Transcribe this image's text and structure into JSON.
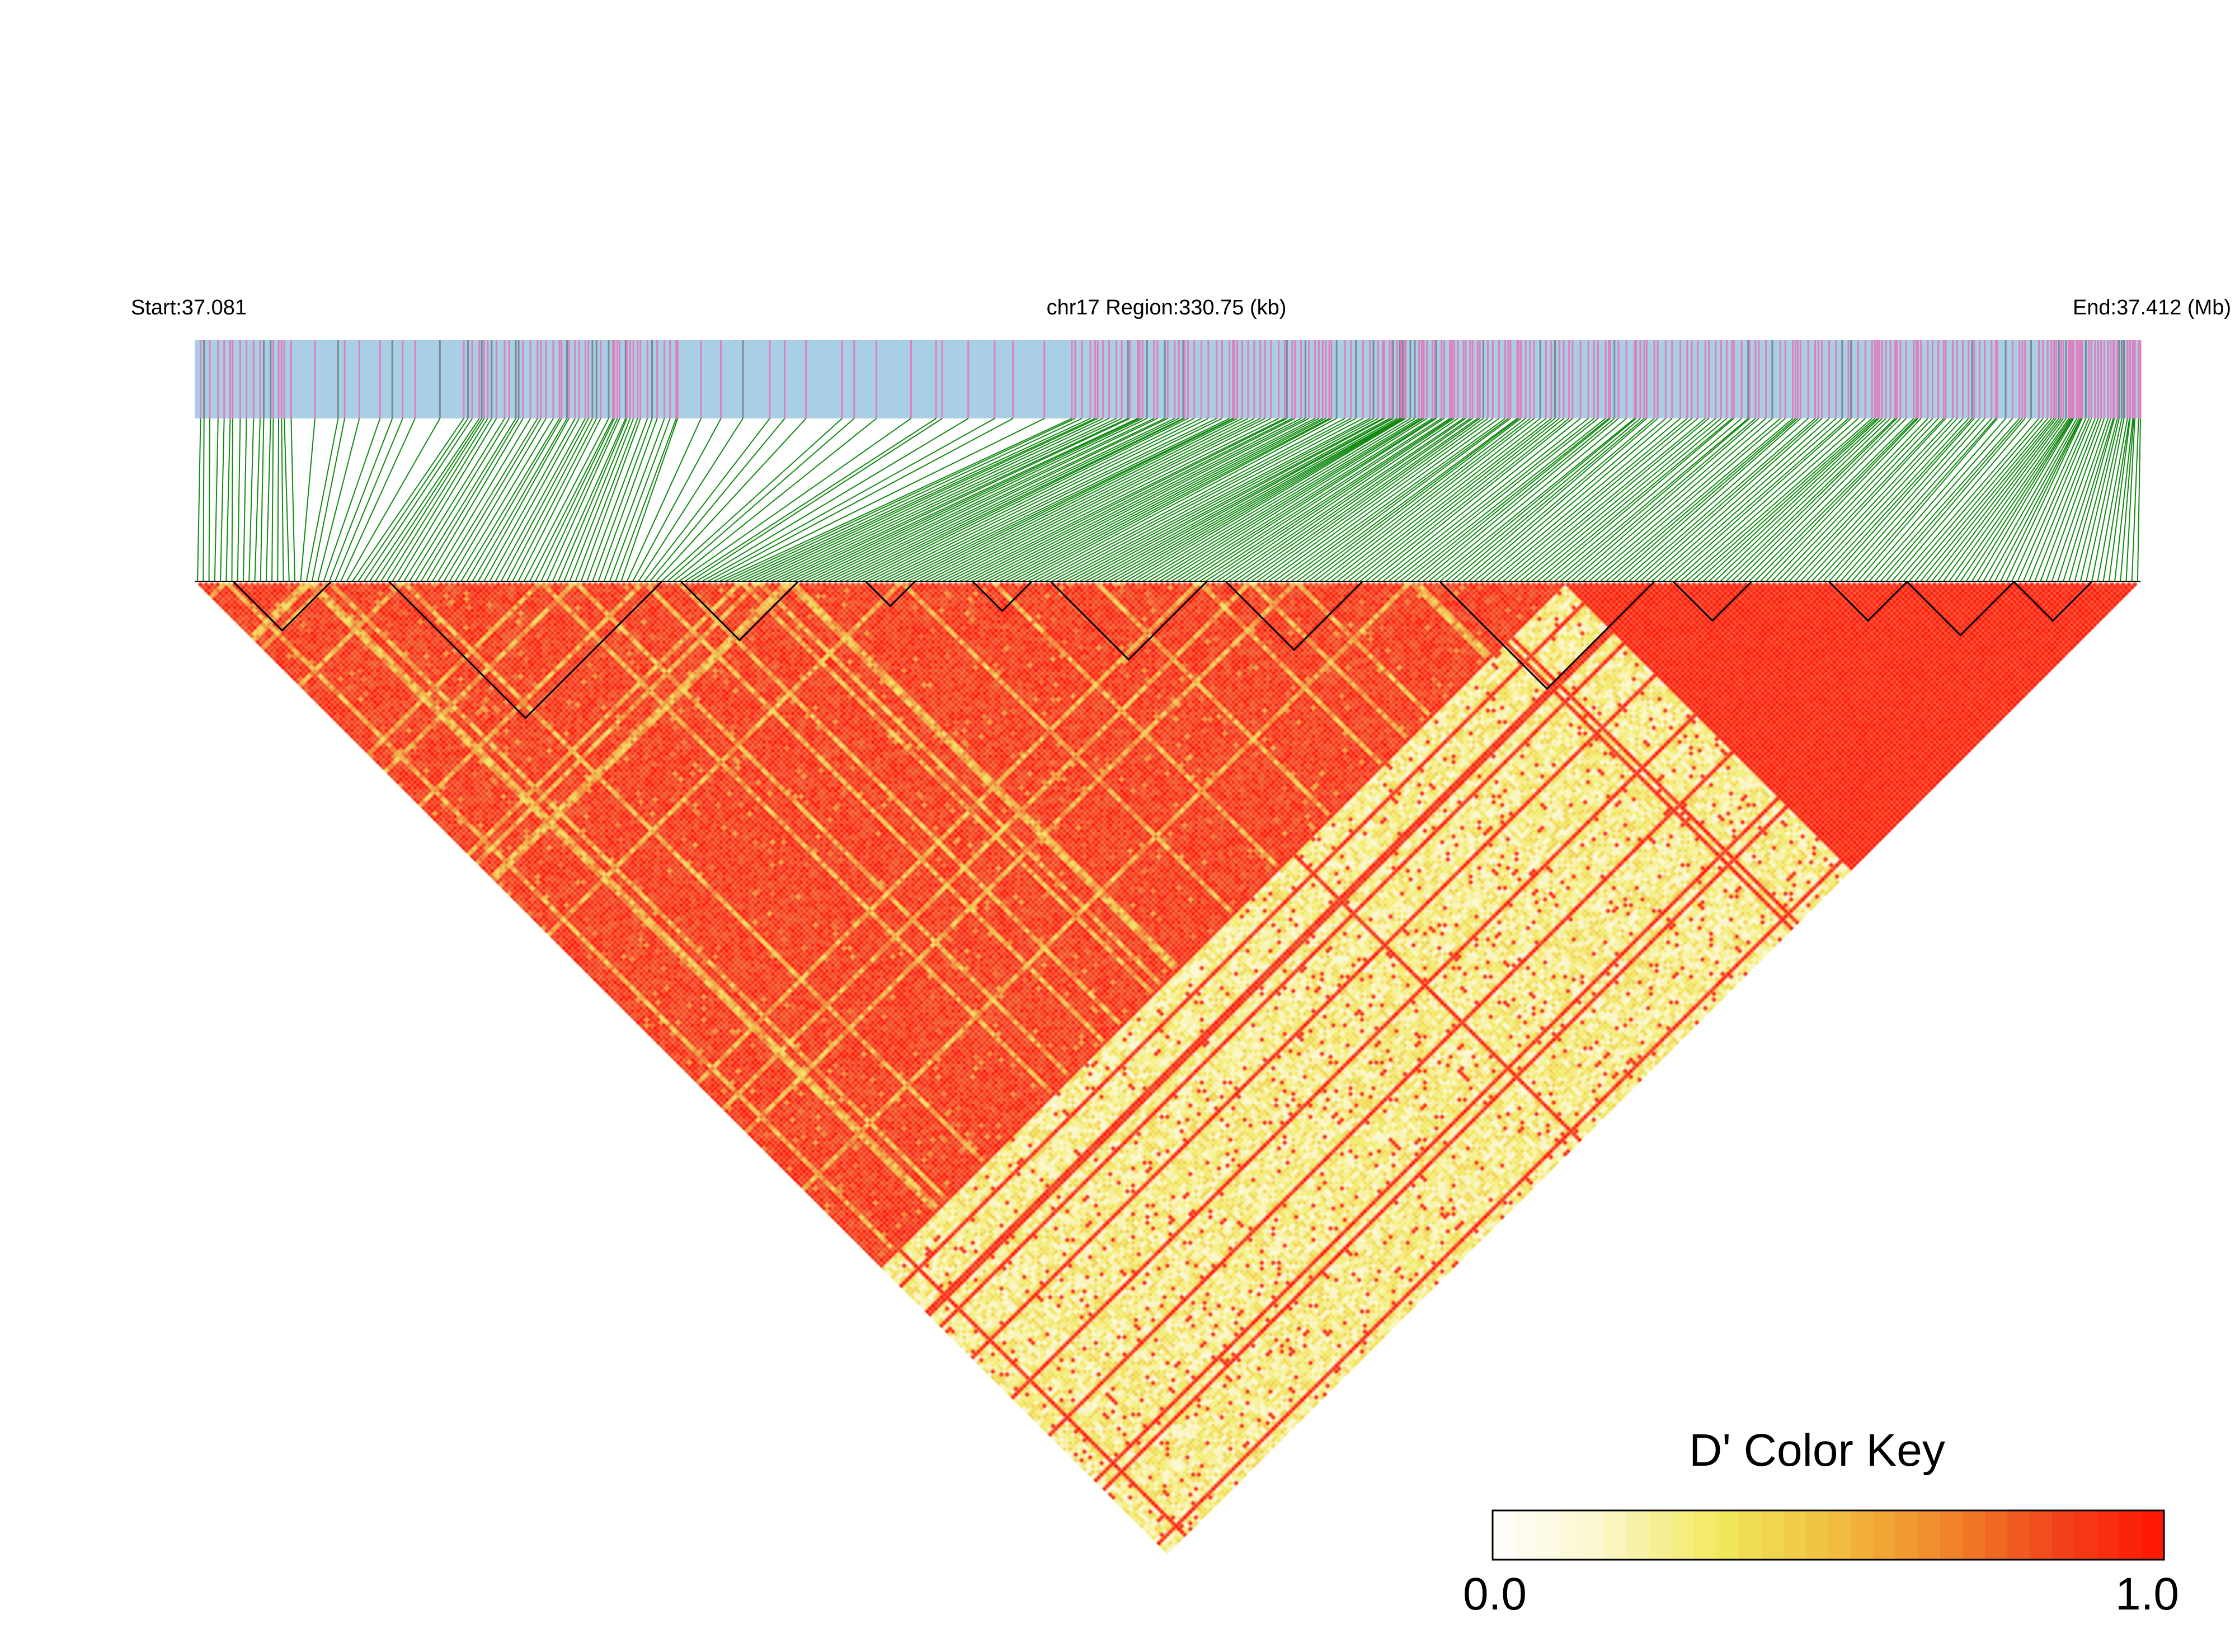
{
  "header": {
    "start_label": "Start:37.081",
    "region_label": "chr17 Region:330.75 (kb)",
    "end_label": "End:37.412 (Mb)"
  },
  "colors": {
    "track_background": "#a8cfe4",
    "snp_tick_pink": "#e07fbf",
    "snp_tick_gray": "#7a8a94",
    "connector_green": "#128a12",
    "heat_high": "#ff1a00",
    "heat_mid": "#f0e442",
    "heat_low": "#ffffff",
    "block_outline": "#000000"
  },
  "color_key": {
    "title": "D' Color Key",
    "min_label": "0.0",
    "max_label": "1.0",
    "min": 0.0,
    "max": 1.0,
    "stops": [
      "#ffffff",
      "#fbf6c8",
      "#f2ea5e",
      "#f0c040",
      "#f08a2a",
      "#f2461c",
      "#ff1500"
    ]
  },
  "chart_data": {
    "type": "heatmap",
    "title": "",
    "chromosome": "chr17",
    "region_kb": 330.75,
    "start_mb": 37.081,
    "end_mb": 37.412,
    "metric": "D'",
    "snp_count": 340,
    "value_range": [
      0.0,
      1.0
    ],
    "summary": "LD heatmap: SNPs in the left ~70% of the region are in strong LD (D' near 1.0, red); a lower-right band of pairs linking the last ~30% of SNPs with the first ~70% shows weak LD (D' ~0.0–0.4, white/yellow)."
  }
}
